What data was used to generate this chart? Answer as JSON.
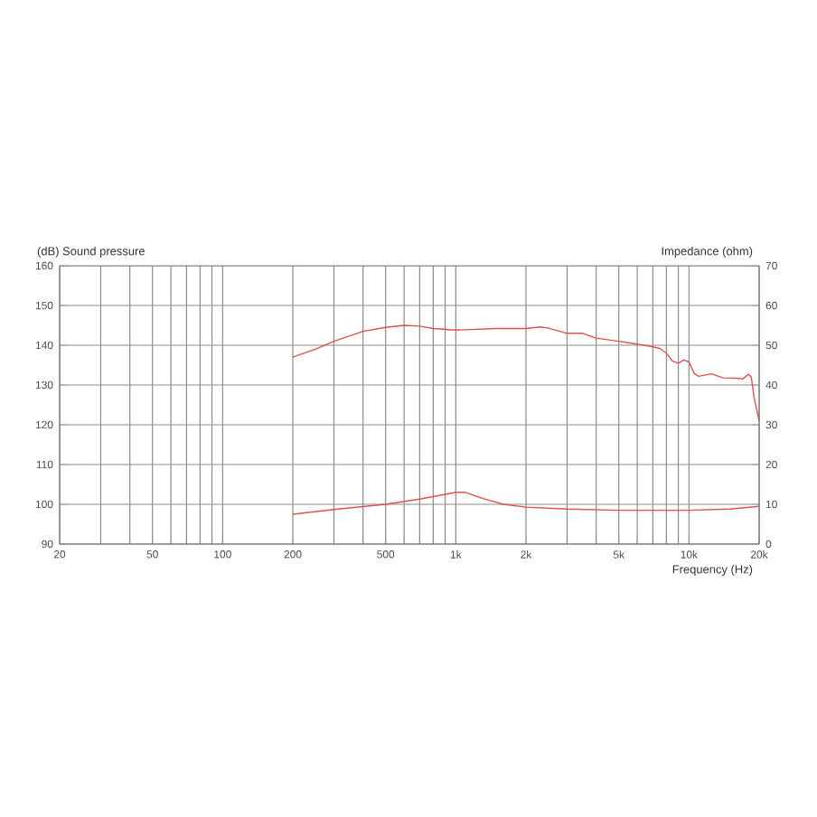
{
  "chart_data": {
    "type": "line",
    "xlabel": "Frequency  (Hz)",
    "ylabel": "(dB)  Sound pressure",
    "y2label": "Impedance  (ohm)",
    "log": "x",
    "grid": true,
    "xlim": [
      20,
      20000
    ],
    "ylim": [
      90,
      160
    ],
    "y2lim": [
      0,
      70
    ],
    "xticks": [
      20,
      {
        "value": 30,
        "label": null
      },
      {
        "value": 40,
        "label": null
      },
      50,
      {
        "value": 60,
        "label": null
      },
      {
        "value": 70,
        "label": null
      },
      {
        "value": 80,
        "label": null
      },
      {
        "value": 90,
        "label": null
      },
      100,
      200,
      {
        "value": 300,
        "label": null
      },
      {
        "value": 400,
        "label": null
      },
      500,
      {
        "value": 600,
        "label": null
      },
      {
        "value": 700,
        "label": null
      },
      {
        "value": 800,
        "label": null
      },
      {
        "value": 900,
        "label": null
      },
      {
        "value": 1000,
        "label": "1k"
      },
      {
        "value": 2000,
        "label": "2k"
      },
      {
        "value": 3000,
        "label": null
      },
      {
        "value": 4000,
        "label": null
      },
      {
        "value": 5000,
        "label": "5k"
      },
      {
        "value": 6000,
        "label": null
      },
      {
        "value": 7000,
        "label": null
      },
      {
        "value": 8000,
        "label": null
      },
      {
        "value": 9000,
        "label": null
      },
      {
        "value": 10000,
        "label": "10k"
      },
      {
        "value": 20000,
        "label": "20k"
      }
    ],
    "yticks": [
      90,
      100,
      110,
      120,
      130,
      140,
      150,
      160
    ],
    "y2ticks": [
      0,
      10,
      20,
      30,
      40,
      50,
      60,
      70
    ],
    "series": [
      {
        "color": "#e05050",
        "x": [
          200,
          250,
          300,
          400,
          500,
          600,
          700,
          800,
          1000,
          1500,
          2000,
          2300,
          2500,
          3000,
          3500,
          4000,
          5000,
          6000,
          7000,
          7500,
          8000,
          8500,
          9000,
          9500,
          10000,
          10500,
          11000,
          12500,
          14000,
          16000,
          17000,
          18000,
          18500,
          19000,
          20000
        ],
        "values": [
          137,
          139,
          141,
          143.5,
          144.5,
          145,
          144.8,
          144.2,
          143.8,
          144.2,
          144.2,
          144.6,
          144.3,
          143,
          143,
          141.8,
          141,
          140.3,
          139.6,
          139.2,
          138,
          136,
          135.5,
          136.3,
          135.8,
          133,
          132.2,
          132.8,
          131.8,
          131.7,
          131.5,
          132.7,
          132,
          127,
          121
        ]
      },
      {
        "color": "#e05050",
        "axis": "y2",
        "x": [
          200,
          300,
          500,
          700,
          900,
          1000,
          1100,
          1300,
          1600,
          2000,
          3000,
          5000,
          10000,
          15000,
          20000
        ],
        "values": [
          7.5,
          8.7,
          10,
          11.3,
          12.5,
          13,
          13,
          11.5,
          10,
          9.3,
          8.8,
          8.5,
          8.5,
          8.8,
          9.5
        ]
      }
    ]
  }
}
